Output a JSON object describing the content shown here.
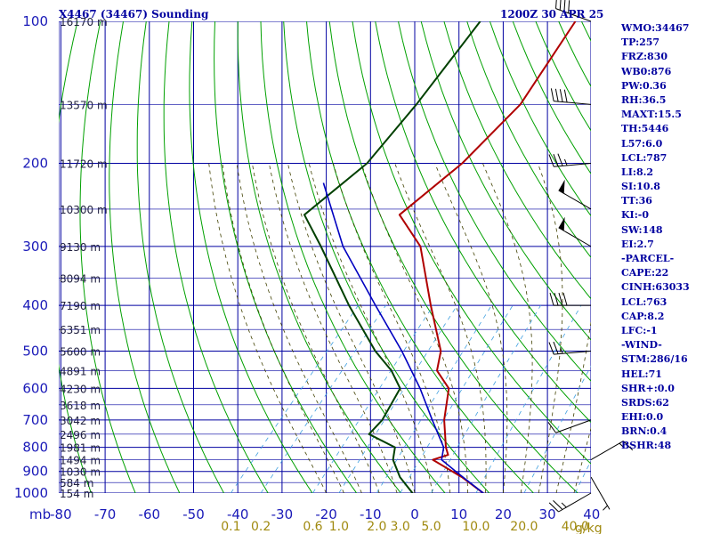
{
  "header": {
    "station": "X4467 (34467) Sounding",
    "time": "1200Z 30 APR 25"
  },
  "stats": [
    "WMO:34467",
    "TP:257",
    "FRZ:830",
    "WB0:876",
    "PW:0.36",
    "RH:36.5",
    "MAXT:15.5",
    "TH:5446",
    "L57:6.0",
    "LCL:787",
    "LI:8.2",
    "SI:10.8",
    "TT:36",
    "KI:-0",
    "SW:148",
    "EI:2.7",
    "-PARCEL-",
    "CAPE:22",
    "CINH:63033",
    "LCL:763",
    "CAP:8.2",
    "LFC:-1",
    "-WIND-",
    "STM:286/16",
    "HEL:71",
    "SHR+:0.0",
    "SRDS:62",
    "EHI:0.0",
    "BRN:0.4",
    "BSHR:48"
  ],
  "colors": {
    "grid": "#0000a0",
    "dry_adiabat": "#00a000",
    "moist_adiabat": "#404000",
    "mixing_ratio": "#40a0e0",
    "temperature": "#b00000",
    "dewpoint": "#004000",
    "parcel": "#0000c0",
    "wind": "#000000"
  },
  "chart_data": {
    "type": "line",
    "title": "X4467 (34467) Sounding 1200Z 30 APR 25",
    "x_axis": {
      "unit_label": "mb",
      "ticks": [
        -80,
        -70,
        -60,
        -50,
        -40,
        -30,
        -20,
        -10,
        0,
        10,
        20,
        30,
        40
      ],
      "tick_labels": [
        "-80",
        "-70",
        "-60",
        "-50",
        "-40",
        "-30",
        "-20",
        "-10",
        "0",
        "10",
        "20",
        "30",
        "40"
      ],
      "range": [
        -80,
        40
      ]
    },
    "y_axis": {
      "scale": "log",
      "ticks": [
        100,
        200,
        300,
        400,
        500,
        600,
        700,
        800,
        900,
        1000
      ],
      "tick_labels": [
        "100",
        "200",
        "300",
        "400",
        "500",
        "600",
        "700",
        "800",
        "900",
        "1000"
      ],
      "range": [
        1000,
        100
      ]
    },
    "height_labels": [
      {
        "p": 100,
        "text": "16170 m"
      },
      {
        "p": 150,
        "text": "13570 m"
      },
      {
        "p": 200,
        "text": "11720 m"
      },
      {
        "p": 250,
        "text": "10300 m"
      },
      {
        "p": 300,
        "text": "9130 m"
      },
      {
        "p": 350,
        "text": "8094 m"
      },
      {
        "p": 400,
        "text": "7190 m"
      },
      {
        "p": 450,
        "text": "6351 m"
      },
      {
        "p": 500,
        "text": "5600 m"
      },
      {
        "p": 550,
        "text": "4891 m"
      },
      {
        "p": 600,
        "text": "4230 m"
      },
      {
        "p": 650,
        "text": "3618 m"
      },
      {
        "p": 700,
        "text": "3042 m"
      },
      {
        "p": 750,
        "text": "2496 m"
      },
      {
        "p": 800,
        "text": "1981 m"
      },
      {
        "p": 850,
        "text": "1494 m"
      },
      {
        "p": 900,
        "text": "1030 m"
      },
      {
        "p": 950,
        "text": "584 m"
      },
      {
        "p": 1000,
        "text": "154 m"
      }
    ],
    "mixing_ratio_labels": [
      {
        "w": 0.1,
        "text": "0.1"
      },
      {
        "w": 0.2,
        "text": "0.2"
      },
      {
        "w": 0.6,
        "text": "0.6"
      },
      {
        "w": 1.0,
        "text": "1.0"
      },
      {
        "w": 2.0,
        "text": "2.0"
      },
      {
        "w": 3.0,
        "text": "3.0"
      },
      {
        "w": 5.0,
        "text": "5.0"
      },
      {
        "w": 10.0,
        "text": "10.0"
      },
      {
        "w": 20.0,
        "text": "20.0"
      },
      {
        "w": 40.0,
        "text": "40.0"
      }
    ],
    "mixing_ratio_unit": "g/kg",
    "series": [
      {
        "key": "temperature",
        "points": [
          {
            "p": 1000,
            "t": 15.5
          },
          {
            "p": 925,
            "t": 7.5
          },
          {
            "p": 850,
            "t": -2.5
          },
          {
            "p": 830,
            "t": 0.0
          },
          {
            "p": 800,
            "t": -2.0
          },
          {
            "p": 700,
            "t": -7.8
          },
          {
            "p": 600,
            "t": -13.0
          },
          {
            "p": 550,
            "t": -19.2
          },
          {
            "p": 500,
            "t": -22.2
          },
          {
            "p": 400,
            "t": -33.5
          },
          {
            "p": 300,
            "t": -47.5
          },
          {
            "p": 257,
            "t": -58.5
          },
          {
            "p": 200,
            "t": -54.5
          },
          {
            "p": 150,
            "t": -53.0
          },
          {
            "p": 100,
            "t": -57.0
          }
        ]
      },
      {
        "key": "dewpoint",
        "points": [
          {
            "p": 1000,
            "t": -0.5
          },
          {
            "p": 925,
            "t": -6.5
          },
          {
            "p": 850,
            "t": -11.5
          },
          {
            "p": 800,
            "t": -13.5
          },
          {
            "p": 750,
            "t": -22.0
          },
          {
            "p": 700,
            "t": -21.8
          },
          {
            "p": 600,
            "t": -24.0
          },
          {
            "p": 550,
            "t": -29.5
          },
          {
            "p": 500,
            "t": -37.0
          },
          {
            "p": 400,
            "t": -52.0
          },
          {
            "p": 300,
            "t": -70.0
          },
          {
            "p": 257,
            "t": -80.0
          },
          {
            "p": 200,
            "t": -76.0
          },
          {
            "p": 150,
            "t": -76.5
          },
          {
            "p": 100,
            "t": -78.5
          }
        ]
      },
      {
        "key": "parcel",
        "points": [
          {
            "p": 1000,
            "t": 15.5
          },
          {
            "p": 900,
            "t": 5.0
          },
          {
            "p": 850,
            "t": -0.5
          },
          {
            "p": 800,
            "t": -2.5
          },
          {
            "p": 700,
            "t": -10.5
          },
          {
            "p": 600,
            "t": -19.5
          },
          {
            "p": 500,
            "t": -31.0
          },
          {
            "p": 400,
            "t": -46.0
          },
          {
            "p": 300,
            "t": -65.0
          },
          {
            "p": 220,
            "t": -82.0
          }
        ]
      }
    ],
    "wind_barbs": [
      {
        "p": 100,
        "dir": 290,
        "spd": 40
      },
      {
        "p": 150,
        "dir": 275,
        "spd": 40
      },
      {
        "p": 200,
        "dir": 265,
        "spd": 35
      },
      {
        "p": 250,
        "dir": 300,
        "spd": 50
      },
      {
        "p": 300,
        "dir": 300,
        "spd": 50
      },
      {
        "p": 400,
        "dir": 270,
        "spd": 40
      },
      {
        "p": 500,
        "dir": 265,
        "spd": 25
      },
      {
        "p": 700,
        "dir": 250,
        "spd": 10
      },
      {
        "p": 850,
        "dir": 60,
        "spd": 15
      },
      {
        "p": 925,
        "dir": 150,
        "spd": 5
      },
      {
        "p": 1000,
        "dir": 240,
        "spd": 25
      }
    ],
    "grid": true
  }
}
